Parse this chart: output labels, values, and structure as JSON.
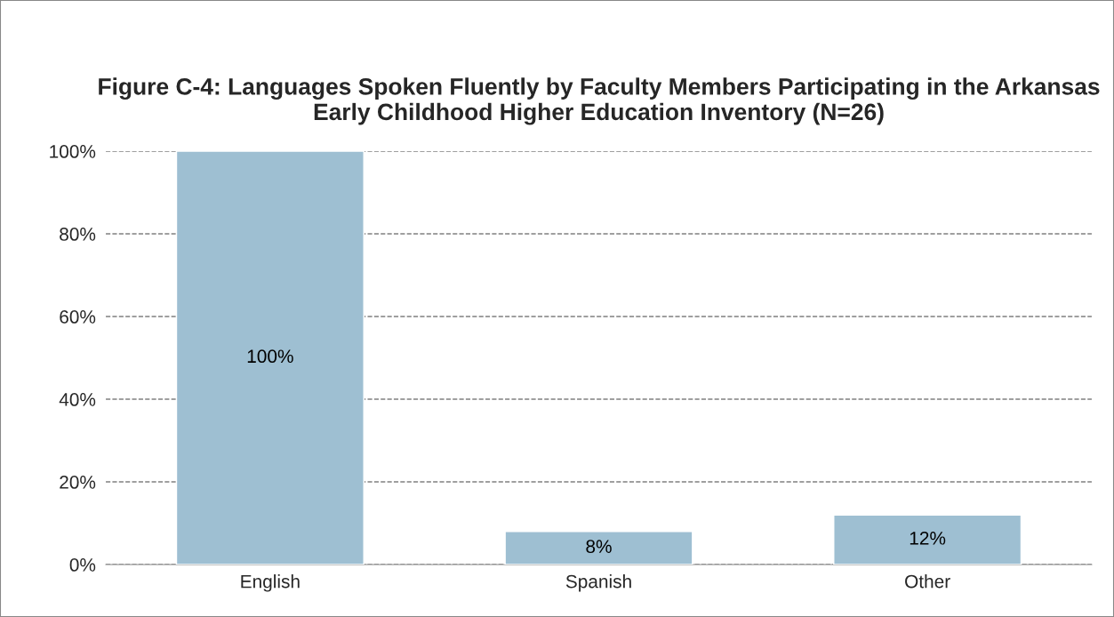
{
  "chart_data": {
    "type": "bar",
    "title": "Figure C-4: Languages Spoken Fluently by Faculty Members Participating in the Arkansas Early Childhood Higher Education Inventory (N=26)",
    "categories": [
      "English",
      "Spanish",
      "Other"
    ],
    "values": [
      100,
      8,
      12
    ],
    "value_labels": [
      "100%",
      "8%",
      "12%"
    ],
    "color": "#9ebfd2",
    "ylim": [
      0,
      100
    ],
    "yticks": [
      {
        "value": 0,
        "label": "0%"
      },
      {
        "value": 20,
        "label": "20%"
      },
      {
        "value": 40,
        "label": "40%"
      },
      {
        "value": 60,
        "label": "60%"
      },
      {
        "value": 80,
        "label": "80%"
      },
      {
        "value": 100,
        "label": "100%"
      }
    ],
    "grid": "y"
  }
}
